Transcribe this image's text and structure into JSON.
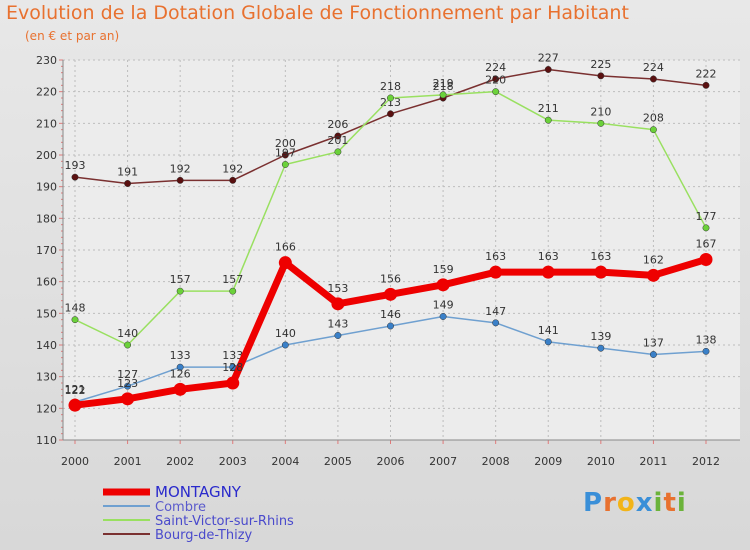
{
  "title": "Evolution de la Dotation Globale de Fonctionnement par Habitant",
  "subtitle": "(en € et par an)",
  "brand": {
    "letters": [
      "P",
      "r",
      "o",
      "x",
      "i",
      "t",
      "i"
    ],
    "colors": [
      "#3a8fd8",
      "#e8712f",
      "#f2b419",
      "#3a8fd8",
      "#6bb33a",
      "#e8712f",
      "#6bb33a"
    ]
  },
  "chart_data": {
    "type": "line",
    "x": [
      2000,
      2001,
      2002,
      2003,
      2004,
      2005,
      2006,
      2007,
      2008,
      2009,
      2010,
      2011,
      2012
    ],
    "ylim": [
      110,
      230
    ],
    "yticks": [
      110,
      120,
      130,
      140,
      150,
      160,
      170,
      180,
      190,
      200,
      210,
      220,
      230
    ],
    "grid": true,
    "legend_position": "bottom-left",
    "series": [
      {
        "name": "Bourg-de-Thizy",
        "color": "#7a3030",
        "marker_color": "#5a1010",
        "values": [
          193,
          191,
          192,
          192,
          200,
          206,
          213,
          218,
          224,
          227,
          225,
          224,
          222
        ]
      },
      {
        "name": "Saint-Victor-sur-Rhins",
        "color": "#99e060",
        "marker_color": "#6bd13a",
        "values": [
          148,
          140,
          157,
          157,
          197,
          201,
          218,
          219,
          220,
          211,
          210,
          208,
          177
        ]
      },
      {
        "name": "Combre",
        "color": "#6fa0d0",
        "marker_color": "#3a80c8",
        "values": [
          122,
          127,
          133,
          133,
          140,
          143,
          146,
          149,
          147,
          141,
          139,
          137,
          138
        ]
      },
      {
        "name": "MONTAGNY",
        "color": "#ee0000",
        "marker_color": "#ee0000",
        "values": [
          121,
          123,
          126,
          128,
          166,
          153,
          156,
          159,
          163,
          163,
          163,
          162,
          167
        ]
      }
    ],
    "legend_order": [
      "MONTAGNY",
      "Combre",
      "Saint-Victor-sur-Rhins",
      "Bourg-de-Thizy"
    ],
    "legend_colors": [
      "#2a2acc",
      "#5a5acc",
      "#4a4acc",
      "#4a4acc"
    ]
  }
}
